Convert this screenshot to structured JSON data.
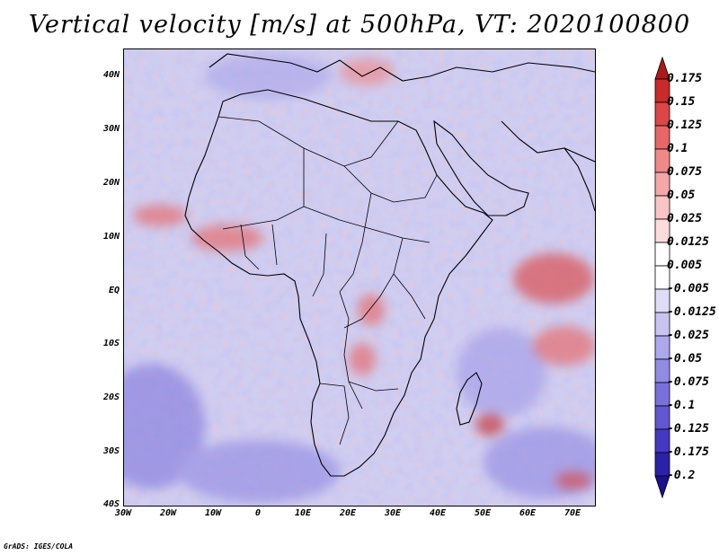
{
  "title": "Vertical velocity [m/s] at 500hPa, VT: 2020100800",
  "credit": "GrADS: IGES/COLA",
  "map": {
    "lat_labels": [
      "40N",
      "30N",
      "20N",
      "10N",
      "EQ",
      "10S",
      "20S",
      "30S",
      "40S"
    ],
    "lon_labels": [
      "30W",
      "20W",
      "10W",
      "0",
      "10E",
      "20E",
      "30E",
      "40E",
      "50E",
      "60E",
      "70E"
    ],
    "lat_range": [
      -40,
      45
    ],
    "lon_range": [
      -30,
      75
    ]
  },
  "colorbar": {
    "labels": [
      "0.175",
      "0.15",
      "0.125",
      "0.1",
      "0.075",
      "0.05",
      "0.025",
      "0.0125",
      "0.005",
      "-0.005",
      "-0.0125",
      "-0.025",
      "-0.05",
      "-0.075",
      "-0.1",
      "-0.125",
      "-0.175",
      "-0.2"
    ],
    "colors": [
      "#b01818",
      "#c92a2a",
      "#dc4646",
      "#e86666",
      "#f08888",
      "#f6a6a6",
      "#f9c4c4",
      "#fbdcdc",
      "#ffffff",
      "#ffffff",
      "#dedcf6",
      "#c8c4f2",
      "#ada8ec",
      "#928be4",
      "#7a70dc",
      "#6256d2",
      "#4638c2",
      "#2d20a8",
      "#1c1090"
    ]
  },
  "colors": {
    "background": "#ffffff",
    "map_base": "#c9c8ee",
    "coastline": "#000000"
  }
}
